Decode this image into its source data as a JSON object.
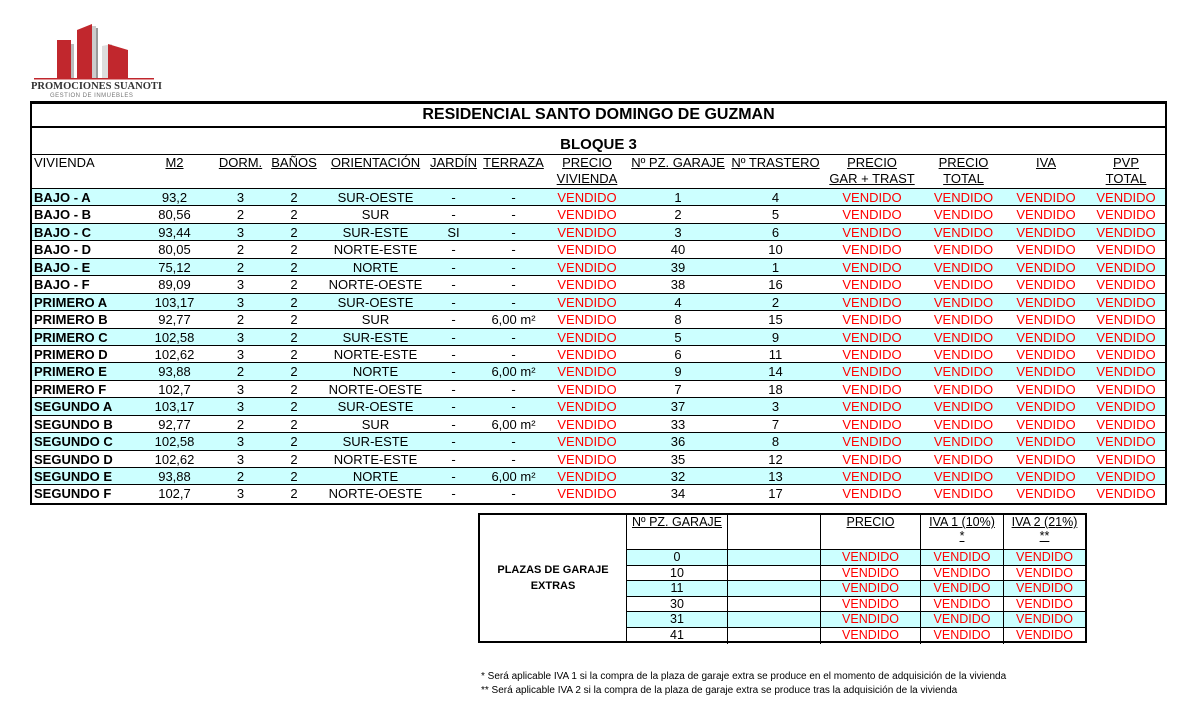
{
  "logo": {
    "name": "PROMOCIONES SUANOTI",
    "subtitle": "GESTION DE INMUEBLES",
    "brand_color": "#c1272d"
  },
  "title": "RESIDENCIAL SANTO DOMINGO DE GUZMAN",
  "block": "BLOQUE 3",
  "headers": [
    "VIVIENDA",
    "M2",
    "DORM.",
    "BAÑOS",
    "ORIENTACIÓN",
    "JARDÍN",
    "TERRAZA",
    [
      "PRECIO",
      "VIVIENDA"
    ],
    "Nº PZ. GARAJE",
    "Nº TRASTERO",
    [
      "PRECIO",
      "GAR + TRAST"
    ],
    [
      "PRECIO",
      "TOTAL"
    ],
    "IVA",
    [
      "PVP",
      "TOTAL"
    ]
  ],
  "rows": [
    [
      "BAJO - A",
      "93,2",
      "3",
      "2",
      "SUR-OESTE",
      "-",
      "-",
      "VENDIDO",
      "1",
      "4",
      "VENDIDO",
      "VENDIDO",
      "VENDIDO",
      "VENDIDO"
    ],
    [
      "BAJO - B",
      "80,56",
      "2",
      "2",
      "SUR",
      "-",
      "-",
      "VENDIDO",
      "2",
      "5",
      "VENDIDO",
      "VENDIDO",
      "VENDIDO",
      "VENDIDO"
    ],
    [
      "BAJO - C",
      "93,44",
      "3",
      "2",
      "SUR-ESTE",
      "SI",
      "-",
      "VENDIDO",
      "3",
      "6",
      "VENDIDO",
      "VENDIDO",
      "VENDIDO",
      "VENDIDO"
    ],
    [
      "BAJO - D",
      "80,05",
      "2",
      "2",
      "NORTE-ESTE",
      "-",
      "-",
      "VENDIDO",
      "40",
      "10",
      "VENDIDO",
      "VENDIDO",
      "VENDIDO",
      "VENDIDO"
    ],
    [
      "BAJO - E",
      "75,12",
      "2",
      "2",
      "NORTE",
      "-",
      "-",
      "VENDIDO",
      "39",
      "1",
      "VENDIDO",
      "VENDIDO",
      "VENDIDO",
      "VENDIDO"
    ],
    [
      "BAJO - F",
      "89,09",
      "3",
      "2",
      "NORTE-OESTE",
      "-",
      "-",
      "VENDIDO",
      "38",
      "16",
      "VENDIDO",
      "VENDIDO",
      "VENDIDO",
      "VENDIDO"
    ],
    [
      "PRIMERO A",
      "103,17",
      "3",
      "2",
      "SUR-OESTE",
      "-",
      "-",
      "VENDIDO",
      "4",
      "2",
      "VENDIDO",
      "VENDIDO",
      "VENDIDO",
      "VENDIDO"
    ],
    [
      "PRIMERO B",
      "92,77",
      "2",
      "2",
      "SUR",
      "-",
      "6,00 m²",
      "VENDIDO",
      "8",
      "15",
      "VENDIDO",
      "VENDIDO",
      "VENDIDO",
      "VENDIDO"
    ],
    [
      "PRIMERO C",
      "102,58",
      "3",
      "2",
      "SUR-ESTE",
      "-",
      "-",
      "VENDIDO",
      "5",
      "9",
      "VENDIDO",
      "VENDIDO",
      "VENDIDO",
      "VENDIDO"
    ],
    [
      "PRIMERO D",
      "102,62",
      "3",
      "2",
      "NORTE-ESTE",
      "-",
      "-",
      "VENDIDO",
      "6",
      "11",
      "VENDIDO",
      "VENDIDO",
      "VENDIDO",
      "VENDIDO"
    ],
    [
      "PRIMERO E",
      "93,88",
      "2",
      "2",
      "NORTE",
      "-",
      "6,00 m²",
      "VENDIDO",
      "9",
      "14",
      "VENDIDO",
      "VENDIDO",
      "VENDIDO",
      "VENDIDO"
    ],
    [
      "PRIMERO F",
      "102,7",
      "3",
      "2",
      "NORTE-OESTE",
      "-",
      "-",
      "VENDIDO",
      "7",
      "18",
      "VENDIDO",
      "VENDIDO",
      "VENDIDO",
      "VENDIDO"
    ],
    [
      "SEGUNDO A",
      "103,17",
      "3",
      "2",
      "SUR-OESTE",
      "-",
      "-",
      "VENDIDO",
      "37",
      "3",
      "VENDIDO",
      "VENDIDO",
      "VENDIDO",
      "VENDIDO"
    ],
    [
      "SEGUNDO B",
      "92,77",
      "2",
      "2",
      "SUR",
      "-",
      "6,00 m²",
      "VENDIDO",
      "33",
      "7",
      "VENDIDO",
      "VENDIDO",
      "VENDIDO",
      "VENDIDO"
    ],
    [
      "SEGUNDO C",
      "102,58",
      "3",
      "2",
      "SUR-ESTE",
      "-",
      "-",
      "VENDIDO",
      "36",
      "8",
      "VENDIDO",
      "VENDIDO",
      "VENDIDO",
      "VENDIDO"
    ],
    [
      "SEGUNDO D",
      "102,62",
      "3",
      "2",
      "NORTE-ESTE",
      "-",
      "-",
      "VENDIDO",
      "35",
      "12",
      "VENDIDO",
      "VENDIDO",
      "VENDIDO",
      "VENDIDO"
    ],
    [
      "SEGUNDO E",
      "93,88",
      "2",
      "2",
      "NORTE",
      "-",
      "6,00 m²",
      "VENDIDO",
      "32",
      "13",
      "VENDIDO",
      "VENDIDO",
      "VENDIDO",
      "VENDIDO"
    ],
    [
      "SEGUNDO F",
      "102,7",
      "3",
      "2",
      "NORTE-OESTE",
      "-",
      "-",
      "VENDIDO",
      "34",
      "17",
      "VENDIDO",
      "VENDIDO",
      "VENDIDO",
      "VENDIDO"
    ]
  ],
  "extras": {
    "label": [
      "PLAZAS DE GARAJE",
      "EXTRAS"
    ],
    "headers": {
      "garaje": "Nº PZ. GARAJE",
      "precio": "PRECIO",
      "iva1": "IVA 1 (10%)",
      "iva1_mark": "*",
      "iva2": "IVA 2 (21%)",
      "iva2_mark": "**"
    },
    "rows": [
      [
        "0",
        "",
        "VENDIDO",
        "VENDIDO",
        "VENDIDO"
      ],
      [
        "10",
        "",
        "VENDIDO",
        "VENDIDO",
        "VENDIDO"
      ],
      [
        "11",
        "",
        "VENDIDO",
        "VENDIDO",
        "VENDIDO"
      ],
      [
        "30",
        "",
        "VENDIDO",
        "VENDIDO",
        "VENDIDO"
      ],
      [
        "31",
        "",
        "VENDIDO",
        "VENDIDO",
        "VENDIDO"
      ],
      [
        "41",
        "",
        "VENDIDO",
        "VENDIDO",
        "VENDIDO"
      ]
    ]
  },
  "notes": [
    "* Será aplicable IVA 1 si la compra de la plaza de garaje extra se produce en el momento de adquisición de la vivienda",
    "** Será aplicable IVA 2 si la compra de la plaza de garaje extra se produce tras la adquisición de la vivienda"
  ],
  "colors": {
    "sold": "#ff0000",
    "row_highlight": "#ccffff"
  }
}
